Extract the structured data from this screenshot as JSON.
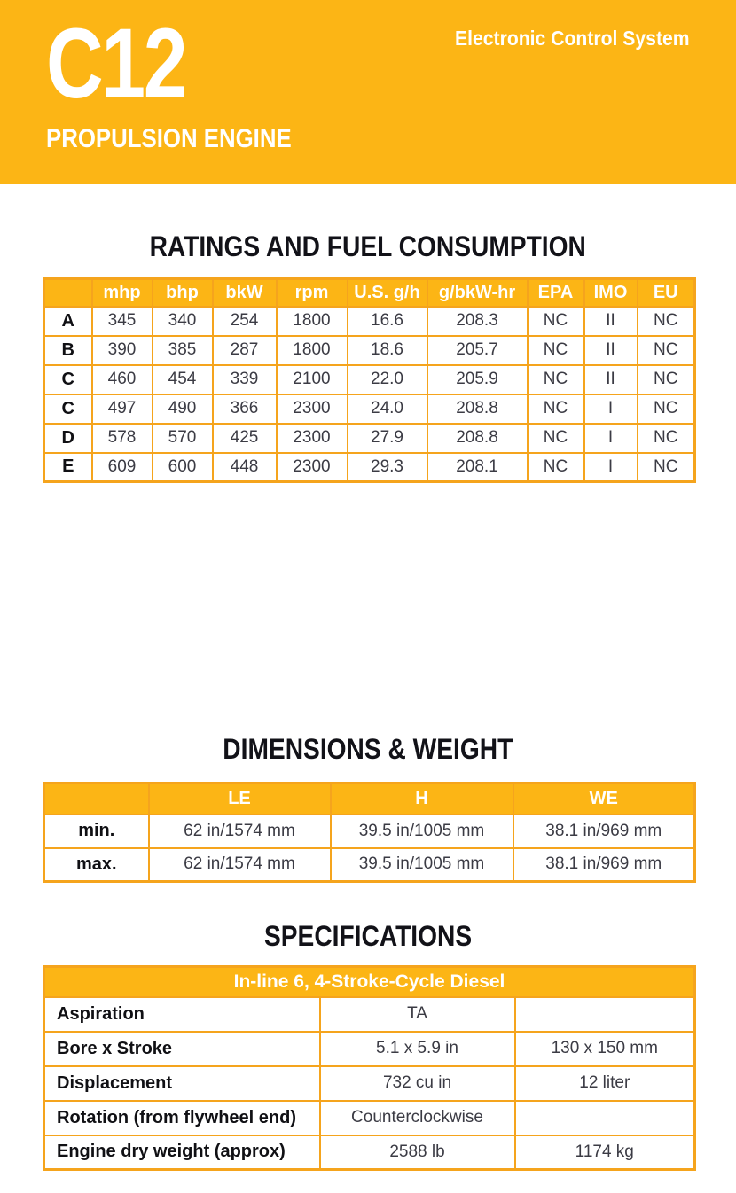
{
  "theme": {
    "accent_yellow": "#FCB515",
    "table_border": "#F5A41D",
    "header_text": "#FFFFFF",
    "data_text": "#3B3B44",
    "label_text": "#101014"
  },
  "header": {
    "model": "C12",
    "subtitle": "PROPULSION ENGINE",
    "tagline": "Electronic Control System"
  },
  "ratings": {
    "title": "RATINGS AND FUEL CONSUMPTION",
    "columns": [
      "",
      "mhp",
      "bhp",
      "bkW",
      "rpm",
      "U.S. g/h",
      "g/bkW-hr",
      "EPA",
      "IMO",
      "EU"
    ],
    "rows": [
      {
        "label": "A",
        "values": [
          "345",
          "340",
          "254",
          "1800",
          "16.6",
          "208.3",
          "NC",
          "II",
          "NC"
        ]
      },
      {
        "label": "B",
        "values": [
          "390",
          "385",
          "287",
          "1800",
          "18.6",
          "205.7",
          "NC",
          "II",
          "NC"
        ]
      },
      {
        "label": "C",
        "values": [
          "460",
          "454",
          "339",
          "2100",
          "22.0",
          "205.9",
          "NC",
          "II",
          "NC"
        ]
      },
      {
        "label": "C",
        "values": [
          "497",
          "490",
          "366",
          "2300",
          "24.0",
          "208.8",
          "NC",
          "I",
          "NC"
        ]
      },
      {
        "label": "D",
        "values": [
          "578",
          "570",
          "425",
          "2300",
          "27.9",
          "208.8",
          "NC",
          "I",
          "NC"
        ]
      },
      {
        "label": "E",
        "values": [
          "609",
          "600",
          "448",
          "2300",
          "29.3",
          "208.1",
          "NC",
          "I",
          "NC"
        ]
      }
    ]
  },
  "dimensions": {
    "title": "DIMENSIONS & WEIGHT",
    "columns": [
      "",
      "LE",
      "H",
      "WE"
    ],
    "rows": [
      {
        "label": "min.",
        "values": [
          "62 in/1574 mm",
          "39.5 in/1005 mm",
          "38.1 in/969 mm"
        ]
      },
      {
        "label": "max.",
        "values": [
          "62 in/1574 mm",
          "39.5 in/1005 mm",
          "38.1 in/969 mm"
        ]
      }
    ]
  },
  "specifications": {
    "title": "SPECIFICATIONS",
    "banner": "In-line 6, 4-Stroke-Cycle Diesel",
    "rows": [
      {
        "label": "Aspiration",
        "value1": "TA",
        "value2": ""
      },
      {
        "label": "Bore x Stroke",
        "value1": "5.1 x 5.9 in",
        "value2": "130 x 150 mm"
      },
      {
        "label": "Displacement",
        "value1": "732 cu in",
        "value2": "12 liter"
      },
      {
        "label": "Rotation (from flywheel end)",
        "value1": "Counterclockwise",
        "value2": ""
      },
      {
        "label": "Engine dry weight (approx)",
        "value1": "2588 lb",
        "value2": "1174 kg"
      }
    ]
  }
}
